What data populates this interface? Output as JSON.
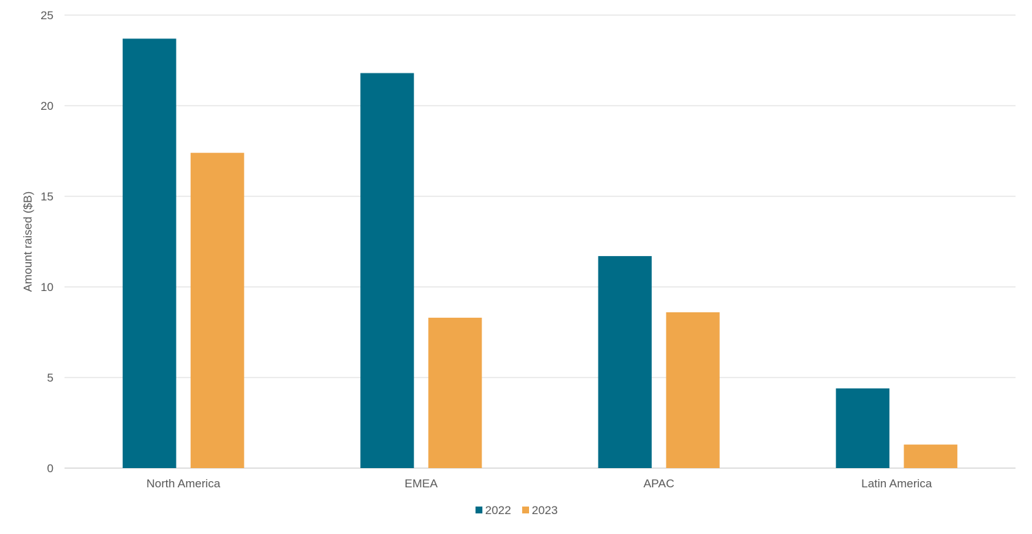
{
  "chart_data": {
    "type": "bar",
    "title": "",
    "xlabel": "",
    "ylabel": "Amount raised ($B)",
    "ylim": [
      0,
      25
    ],
    "yticks": [
      0,
      5,
      10,
      15,
      20,
      25
    ],
    "grid": true,
    "legend_position": "bottom",
    "categories": [
      "North America",
      "EMEA",
      "APAC",
      "Latin America"
    ],
    "series": [
      {
        "name": "2022",
        "color": "#006C87",
        "values": [
          23.7,
          21.8,
          11.7,
          4.4
        ]
      },
      {
        "name": "2023",
        "color": "#F0A74B",
        "values": [
          17.4,
          8.3,
          8.6,
          1.3
        ]
      }
    ]
  }
}
